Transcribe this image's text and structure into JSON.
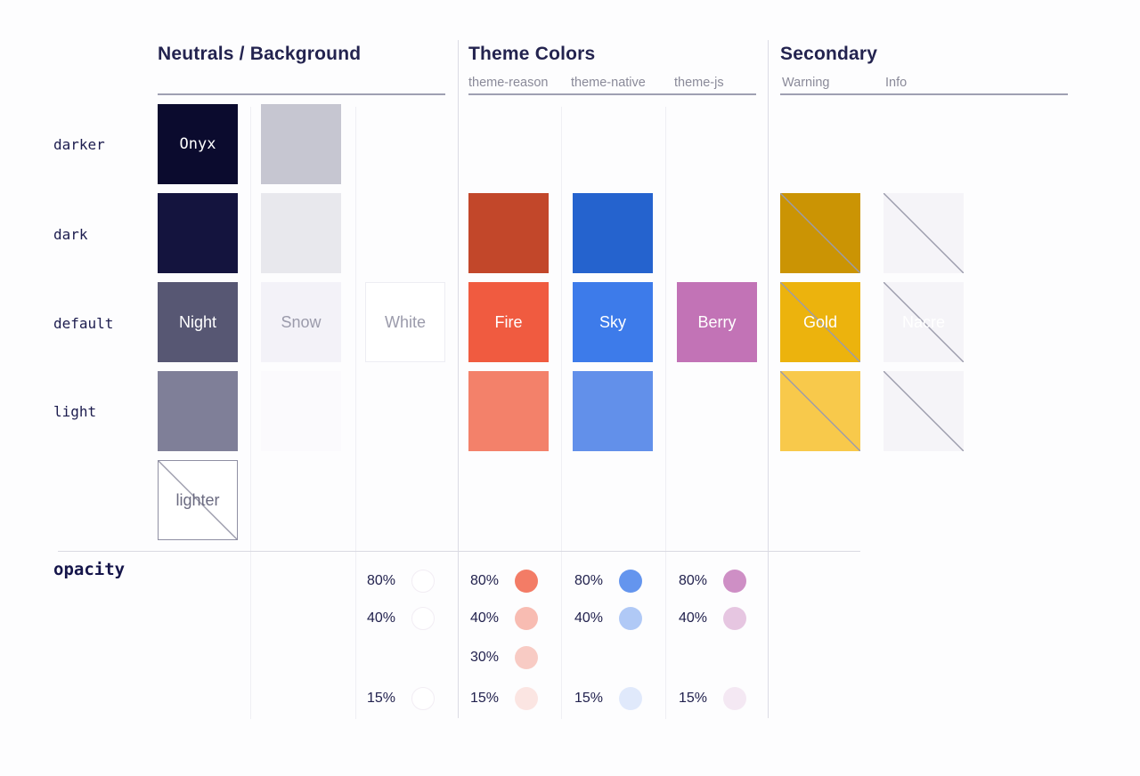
{
  "page": {
    "background": "#fdfdfe"
  },
  "sections": [
    {
      "title": "Neutrals / Background",
      "sublabels": []
    },
    {
      "title": "Theme Colors",
      "sublabels": [
        "theme-reason",
        "theme-native",
        "theme-js"
      ]
    },
    {
      "title": "Secondary",
      "sublabels": [
        "Warning",
        "Info"
      ]
    }
  ],
  "row_labels": [
    "darker",
    "dark",
    "default",
    "light"
  ],
  "opacity_label": "opacity",
  "diagonal_color": "#9b9bab",
  "swatches": [
    {
      "id": "onyx-darker",
      "col": 0,
      "row": 0,
      "color": "#0b0b2e",
      "label": "Onyx",
      "label_color": "#ffffff",
      "label_font": "mono"
    },
    {
      "id": "navy-dark",
      "col": 0,
      "row": 1,
      "color": "#14143e"
    },
    {
      "id": "night-default",
      "col": 0,
      "row": 2,
      "color": "#575773",
      "label": "Night",
      "label_color": "#ffffff"
    },
    {
      "id": "night-light",
      "col": 0,
      "row": 3,
      "color": "#7f7f98"
    },
    {
      "id": "lighter",
      "col": 0,
      "row": 4,
      "color": "#ffffff",
      "label": "lighter",
      "label_color": "#6a6a80",
      "border": "#8f8fa3",
      "diagonal": true
    },
    {
      "id": "gray-darker",
      "col": 1,
      "row": 0,
      "color": "#c6c6d1"
    },
    {
      "id": "gray-dark",
      "col": 1,
      "row": 1,
      "color": "#e8e8ed"
    },
    {
      "id": "snow-default",
      "col": 1,
      "row": 2,
      "color": "#f3f2f8",
      "label": "Snow",
      "label_color": "#9b9bab"
    },
    {
      "id": "snow-light",
      "col": 1,
      "row": 3,
      "color": "#fbfafd"
    },
    {
      "id": "white-default",
      "col": 2,
      "row": 2,
      "color": "#ffffff",
      "label": "White",
      "label_color": "#9b9bab",
      "border": "#ededf3"
    },
    {
      "id": "fire-dark",
      "col": 3,
      "row": 1,
      "color": "#c2472a"
    },
    {
      "id": "fire-default",
      "col": 3,
      "row": 2,
      "color": "#f05b40",
      "label": "Fire",
      "label_color": "#ffffff"
    },
    {
      "id": "fire-light",
      "col": 3,
      "row": 3,
      "color": "#f3816a"
    },
    {
      "id": "sky-dark",
      "col": 4,
      "row": 1,
      "color": "#2563ce"
    },
    {
      "id": "sky-default",
      "col": 4,
      "row": 2,
      "color": "#3d7bea",
      "label": "Sky",
      "label_color": "#ffffff"
    },
    {
      "id": "sky-light",
      "col": 4,
      "row": 3,
      "color": "#6290ea"
    },
    {
      "id": "berry-default",
      "col": 5,
      "row": 2,
      "color": "#c273b6",
      "label": "Berry",
      "label_color": "#ffffff"
    },
    {
      "id": "gold-dark",
      "col": 6,
      "row": 1,
      "color": "#cb9404",
      "diagonal": true
    },
    {
      "id": "gold-default",
      "col": 6,
      "row": 2,
      "color": "#ecb30d",
      "label": "Gold",
      "label_color": "#ffffff",
      "diagonal": true
    },
    {
      "id": "gold-light",
      "col": 6,
      "row": 3,
      "color": "#f8c94b",
      "diagonal": true
    },
    {
      "id": "info-dark",
      "col": 7,
      "row": 1,
      "color": "#f5f4f8",
      "diagonal": true
    },
    {
      "id": "info-default",
      "col": 7,
      "row": 2,
      "color": "#f5f4f8",
      "label": "Nacre",
      "label_color": "#ffffff",
      "diagonal": true
    },
    {
      "id": "info-light",
      "col": 7,
      "row": 3,
      "color": "#f5f4f8",
      "diagonal": true
    }
  ],
  "opacity_groups": [
    {
      "id": "white",
      "col": 2,
      "base": "#ffffff",
      "outlined": true,
      "items": [
        {
          "pct": "80%",
          "opacity": 0.8,
          "slot": 0
        },
        {
          "pct": "40%",
          "opacity": 0.4,
          "slot": 1
        },
        {
          "pct": "15%",
          "opacity": 0.15,
          "slot": 3
        }
      ]
    },
    {
      "id": "fire",
      "col": 3,
      "base": "#f05b40",
      "items": [
        {
          "pct": "80%",
          "opacity": 0.8,
          "slot": 0
        },
        {
          "pct": "40%",
          "opacity": 0.4,
          "slot": 1
        },
        {
          "pct": "30%",
          "opacity": 0.3,
          "slot": 2
        },
        {
          "pct": "15%",
          "opacity": 0.15,
          "slot": 3
        }
      ]
    },
    {
      "id": "sky",
      "col": 4,
      "base": "#3d7bea",
      "items": [
        {
          "pct": "80%",
          "opacity": 0.8,
          "slot": 0
        },
        {
          "pct": "40%",
          "opacity": 0.4,
          "slot": 1
        },
        {
          "pct": "15%",
          "opacity": 0.15,
          "slot": 3
        }
      ]
    },
    {
      "id": "berry",
      "col": 5,
      "base": "#c273b6",
      "items": [
        {
          "pct": "80%",
          "opacity": 0.8,
          "slot": 0
        },
        {
          "pct": "40%",
          "opacity": 0.4,
          "slot": 1
        },
        {
          "pct": "15%",
          "opacity": 0.15,
          "slot": 3
        }
      ]
    }
  ]
}
